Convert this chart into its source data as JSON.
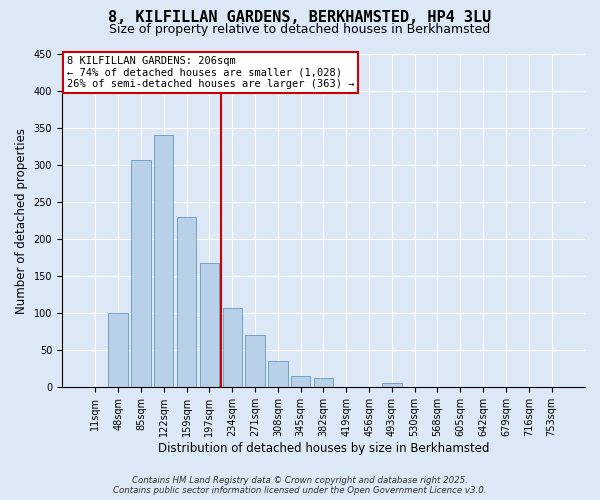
{
  "title": "8, KILFILLAN GARDENS, BERKHAMSTED, HP4 3LU",
  "subtitle": "Size of property relative to detached houses in Berkhamsted",
  "xlabel": "Distribution of detached houses by size in Berkhamsted",
  "ylabel": "Number of detached properties",
  "bar_labels": [
    "11sqm",
    "48sqm",
    "85sqm",
    "122sqm",
    "159sqm",
    "197sqm",
    "234sqm",
    "271sqm",
    "308sqm",
    "345sqm",
    "382sqm",
    "419sqm",
    "456sqm",
    "493sqm",
    "530sqm",
    "568sqm",
    "605sqm",
    "642sqm",
    "679sqm",
    "716sqm",
    "753sqm"
  ],
  "bar_values": [
    0,
    101,
    307,
    341,
    230,
    168,
    107,
    70,
    35,
    15,
    12,
    0,
    0,
    6,
    0,
    0,
    0,
    0,
    0,
    0,
    0
  ],
  "bar_color": "#b8d0e8",
  "bar_edge_color": "#6699bb",
  "vline_x": 5.5,
  "vline_color": "#cc0000",
  "annotation_text": "8 KILFILLAN GARDENS: 206sqm\n← 74% of detached houses are smaller (1,028)\n26% of semi-detached houses are larger (363) →",
  "annotation_box_facecolor": "#ffffff",
  "annotation_box_edgecolor": "#cc0000",
  "ylim": [
    0,
    450
  ],
  "yticks": [
    0,
    50,
    100,
    150,
    200,
    250,
    300,
    350,
    400,
    450
  ],
  "footer_line1": "Contains HM Land Registry data © Crown copyright and database right 2025.",
  "footer_line2": "Contains public sector information licensed under the Open Government Licence v3.0.",
  "background_color": "#dce8f5",
  "plot_background_color": "#dce8f5",
  "title_fontsize": 11,
  "subtitle_fontsize": 9,
  "tick_fontsize": 7,
  "label_fontsize": 8.5,
  "annotation_fontsize": 7.5,
  "footer_fontsize": 6.2
}
